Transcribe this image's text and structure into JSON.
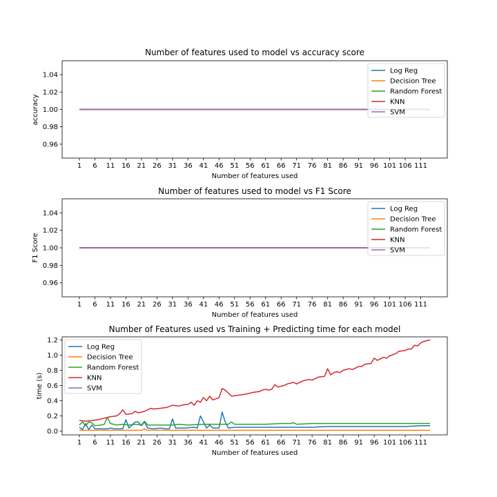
{
  "chart_data": [
    {
      "type": "line",
      "title": "Number of features used to model vs accuracy score",
      "xlabel": "Number of features used",
      "ylabel": "accuracy",
      "xlim": [
        1,
        114
      ],
      "ylim": [
        0.944,
        1.056
      ],
      "x_ticks": [
        1,
        6,
        11,
        16,
        21,
        26,
        31,
        36,
        41,
        46,
        51,
        56,
        61,
        66,
        71,
        76,
        81,
        86,
        91,
        96,
        101,
        106,
        111
      ],
      "y_ticks": [
        0.96,
        0.98,
        1.0,
        1.02,
        1.04
      ],
      "y_tick_labels": [
        "0.96",
        "0.98",
        "1.00",
        "1.02",
        "1.04"
      ],
      "legend_position": "top-right",
      "series": [
        {
          "name": "Log Reg",
          "color": "#1f77b4",
          "constant": 1.0
        },
        {
          "name": "Decision Tree",
          "color": "#ff7f0e",
          "constant": 1.0
        },
        {
          "name": "Random Forest",
          "color": "#2ca02c",
          "constant": 1.0
        },
        {
          "name": "KNN",
          "color": "#d62728",
          "constant": 1.0
        },
        {
          "name": "SVM",
          "color": "#9467bd",
          "constant": 1.0
        }
      ]
    },
    {
      "type": "line",
      "title": "Number of features used to model vs F1 Score",
      "xlabel": "Number of features used",
      "ylabel": "F1 Score",
      "xlim": [
        1,
        114
      ],
      "ylim": [
        0.944,
        1.056
      ],
      "x_ticks": [
        1,
        6,
        11,
        16,
        21,
        26,
        31,
        36,
        41,
        46,
        51,
        56,
        61,
        66,
        71,
        76,
        81,
        86,
        91,
        96,
        101,
        106,
        111
      ],
      "y_ticks": [
        0.96,
        0.98,
        1.0,
        1.02,
        1.04
      ],
      "y_tick_labels": [
        "0.96",
        "0.98",
        "1.00",
        "1.02",
        "1.04"
      ],
      "legend_position": "top-right",
      "series": [
        {
          "name": "Log Reg",
          "color": "#1f77b4",
          "constant": 1.0
        },
        {
          "name": "Decision Tree",
          "color": "#ff7f0e",
          "constant": 1.0
        },
        {
          "name": "Random Forest",
          "color": "#2ca02c",
          "constant": 1.0
        },
        {
          "name": "KNN",
          "color": "#d62728",
          "constant": 1.0
        },
        {
          "name": "SVM",
          "color": "#9467bd",
          "constant": 1.0
        }
      ]
    },
    {
      "type": "line",
      "title": "Number of Features used vs Training + Predicting time for each model",
      "xlabel": "Number of features used",
      "ylabel": "time (s)",
      "xlim": [
        1,
        114
      ],
      "ylim": [
        -0.05,
        1.24
      ],
      "x_ticks": [
        1,
        6,
        11,
        16,
        21,
        26,
        31,
        36,
        41,
        46,
        51,
        56,
        61,
        66,
        71,
        76,
        81,
        86,
        91,
        96,
        101,
        106,
        111
      ],
      "y_ticks": [
        0.0,
        0.2,
        0.4,
        0.6,
        0.8,
        1.0,
        1.2
      ],
      "y_tick_labels": [
        "0.0",
        "0.2",
        "0.4",
        "0.6",
        "0.8",
        "1.0",
        "1.2"
      ],
      "legend_position": "top-left",
      "series": [
        {
          "name": "Log Reg",
          "color": "#1f77b4",
          "points": [
            [
              1,
              0.05
            ],
            [
              2,
              0.02
            ],
            [
              3,
              0.1
            ],
            [
              4,
              0.02
            ],
            [
              5,
              0.08
            ],
            [
              6,
              0.03
            ],
            [
              8,
              0.03
            ],
            [
              10,
              0.03
            ],
            [
              11,
              0.04
            ],
            [
              12,
              0.03
            ],
            [
              15,
              0.03
            ],
            [
              16,
              0.15
            ],
            [
              17,
              0.04
            ],
            [
              18,
              0.08
            ],
            [
              19,
              0.12
            ],
            [
              20,
              0.12
            ],
            [
              21,
              0.07
            ],
            [
              22,
              0.12
            ],
            [
              23,
              0.04
            ],
            [
              25,
              0.03
            ],
            [
              27,
              0.04
            ],
            [
              29,
              0.03
            ],
            [
              30,
              0.03
            ],
            [
              31,
              0.16
            ],
            [
              32,
              0.04
            ],
            [
              35,
              0.04
            ],
            [
              38,
              0.05
            ],
            [
              39,
              0.04
            ],
            [
              40,
              0.2
            ],
            [
              41,
              0.12
            ],
            [
              42,
              0.04
            ],
            [
              43,
              0.08
            ],
            [
              44,
              0.04
            ],
            [
              46,
              0.04
            ],
            [
              47,
              0.25
            ],
            [
              48,
              0.12
            ],
            [
              49,
              0.04
            ],
            [
              51,
              0.05
            ],
            [
              55,
              0.05
            ],
            [
              60,
              0.05
            ],
            [
              66,
              0.05
            ],
            [
              71,
              0.05
            ],
            [
              76,
              0.05
            ],
            [
              81,
              0.06
            ],
            [
              86,
              0.06
            ],
            [
              91,
              0.06
            ],
            [
              96,
              0.06
            ],
            [
              101,
              0.06
            ],
            [
              106,
              0.06
            ],
            [
              111,
              0.07
            ],
            [
              114,
              0.07
            ]
          ]
        },
        {
          "name": "Decision Tree",
          "color": "#ff7f0e",
          "points": [
            [
              1,
              0.01
            ],
            [
              5,
              0.01
            ],
            [
              10,
              0.01
            ],
            [
              20,
              0.01
            ],
            [
              21,
              0.01
            ],
            [
              22,
              0.03
            ],
            [
              23,
              0.01
            ],
            [
              30,
              0.01
            ],
            [
              40,
              0.01
            ],
            [
              50,
              0.01
            ],
            [
              60,
              0.01
            ],
            [
              70,
              0.01
            ],
            [
              80,
              0.01
            ],
            [
              90,
              0.01
            ],
            [
              100,
              0.01
            ],
            [
              110,
              0.01
            ],
            [
              114,
              0.01
            ]
          ]
        },
        {
          "name": "Random Forest",
          "color": "#2ca02c",
          "points": [
            [
              1,
              0.08
            ],
            [
              2,
              0.12
            ],
            [
              3,
              0.07
            ],
            [
              4,
              0.12
            ],
            [
              5,
              0.11
            ],
            [
              6,
              0.07
            ],
            [
              8,
              0.08
            ],
            [
              9,
              0.09
            ],
            [
              10,
              0.18
            ],
            [
              11,
              0.1
            ],
            [
              13,
              0.08
            ],
            [
              15,
              0.09
            ],
            [
              17,
              0.08
            ],
            [
              19,
              0.09
            ],
            [
              21,
              0.08
            ],
            [
              22,
              0.13
            ],
            [
              23,
              0.08
            ],
            [
              26,
              0.08
            ],
            [
              31,
              0.08
            ],
            [
              33,
              0.09
            ],
            [
              36,
              0.08
            ],
            [
              41,
              0.09
            ],
            [
              46,
              0.09
            ],
            [
              49,
              0.09
            ],
            [
              50,
              0.12
            ],
            [
              51,
              0.09
            ],
            [
              56,
              0.09
            ],
            [
              61,
              0.09
            ],
            [
              66,
              0.1
            ],
            [
              69,
              0.1
            ],
            [
              70,
              0.11
            ],
            [
              71,
              0.09
            ],
            [
              76,
              0.1
            ],
            [
              81,
              0.1
            ],
            [
              86,
              0.1
            ],
            [
              91,
              0.1
            ],
            [
              96,
              0.1
            ],
            [
              101,
              0.1
            ],
            [
              106,
              0.1
            ],
            [
              111,
              0.1
            ],
            [
              114,
              0.1
            ]
          ]
        },
        {
          "name": "KNN",
          "color": "#d62728",
          "points": [
            [
              1,
              0.14
            ],
            [
              3,
              0.13
            ],
            [
              5,
              0.14
            ],
            [
              7,
              0.15
            ],
            [
              9,
              0.17
            ],
            [
              11,
              0.19
            ],
            [
              13,
              0.2
            ],
            [
              14,
              0.23
            ],
            [
              15,
              0.28
            ],
            [
              16,
              0.22
            ],
            [
              18,
              0.23
            ],
            [
              19,
              0.26
            ],
            [
              20,
              0.24
            ],
            [
              22,
              0.26
            ],
            [
              24,
              0.3
            ],
            [
              25,
              0.29
            ],
            [
              27,
              0.3
            ],
            [
              29,
              0.31
            ],
            [
              31,
              0.34
            ],
            [
              33,
              0.33
            ],
            [
              35,
              0.35
            ],
            [
              36,
              0.35
            ],
            [
              37,
              0.38
            ],
            [
              38,
              0.34
            ],
            [
              39,
              0.4
            ],
            [
              40,
              0.38
            ],
            [
              41,
              0.44
            ],
            [
              42,
              0.4
            ],
            [
              43,
              0.46
            ],
            [
              44,
              0.41
            ],
            [
              46,
              0.44
            ],
            [
              47,
              0.56
            ],
            [
              48,
              0.54
            ],
            [
              49,
              0.5
            ],
            [
              50,
              0.46
            ],
            [
              52,
              0.47
            ],
            [
              55,
              0.49
            ],
            [
              57,
              0.51
            ],
            [
              59,
              0.52
            ],
            [
              60,
              0.54
            ],
            [
              61,
              0.55
            ],
            [
              62,
              0.54
            ],
            [
              63,
              0.55
            ],
            [
              64,
              0.61
            ],
            [
              65,
              0.58
            ],
            [
              67,
              0.6
            ],
            [
              68,
              0.62
            ],
            [
              70,
              0.64
            ],
            [
              71,
              0.62
            ],
            [
              73,
              0.66
            ],
            [
              75,
              0.68
            ],
            [
              76,
              0.67
            ],
            [
              78,
              0.71
            ],
            [
              80,
              0.72
            ],
            [
              81,
              0.82
            ],
            [
              82,
              0.74
            ],
            [
              83,
              0.77
            ],
            [
              84,
              0.78
            ],
            [
              85,
              0.77
            ],
            [
              86,
              0.8
            ],
            [
              88,
              0.82
            ],
            [
              89,
              0.81
            ],
            [
              91,
              0.85
            ],
            [
              92,
              0.85
            ],
            [
              93,
              0.88
            ],
            [
              95,
              0.89
            ],
            [
              96,
              0.96
            ],
            [
              97,
              0.93
            ],
            [
              99,
              0.97
            ],
            [
              100,
              0.96
            ],
            [
              101,
              0.99
            ],
            [
              103,
              1.02
            ],
            [
              104,
              1.05
            ],
            [
              106,
              1.06
            ],
            [
              107,
              1.08
            ],
            [
              108,
              1.08
            ],
            [
              109,
              1.13
            ],
            [
              110,
              1.12
            ],
            [
              111,
              1.16
            ],
            [
              112,
              1.18
            ],
            [
              114,
              1.2
            ]
          ]
        },
        {
          "name": "SVM",
          "color": "#9467bd",
          "points": []
        }
      ]
    }
  ]
}
